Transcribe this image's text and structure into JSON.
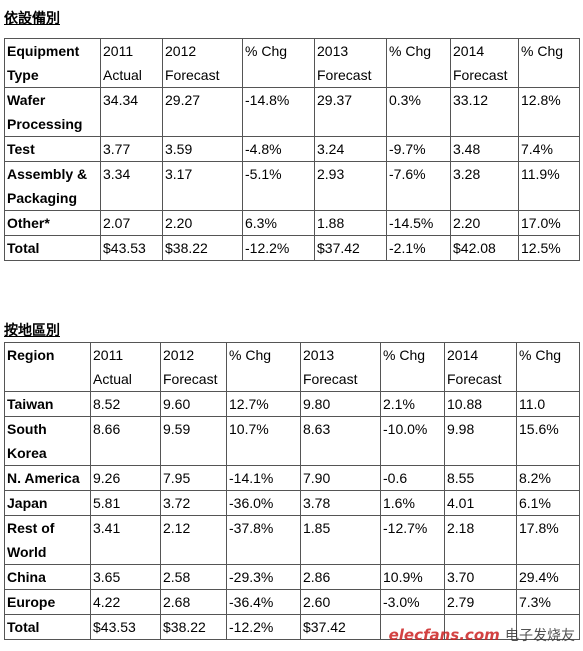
{
  "equipment": {
    "title": "依設備別",
    "header": [
      "Equipment Type",
      "2011 Actual",
      "2012 Forecast",
      "% Chg",
      "2013 Forecast",
      "% Chg",
      "2014 Forecast",
      "% Chg"
    ],
    "rows": [
      [
        "Wafer Processing",
        "34.34",
        "29.27",
        "-14.8%",
        "29.37",
        "0.3%",
        "33.12",
        "12.8%"
      ],
      [
        "Test",
        "3.77",
        "3.59",
        "-4.8%",
        "3.24",
        "-9.7%",
        "3.48",
        "7.4%"
      ],
      [
        "Assembly & Packaging",
        "3.34",
        "3.17",
        "-5.1%",
        "2.93",
        "-7.6%",
        "3.28",
        "11.9%"
      ],
      [
        "Other*",
        "2.07",
        "2.20",
        "6.3%",
        "1.88",
        "-14.5%",
        "2.20",
        "17.0%"
      ],
      [
        "Total",
        "$43.53",
        "$38.22",
        "-12.2%",
        "$37.42",
        "-2.1%",
        "$42.08",
        "12.5%"
      ]
    ]
  },
  "region": {
    "title": "按地區別",
    "header": [
      "Region",
      "2011 Actual",
      "2012 Forecast",
      "% Chg",
      "2013 Forecast",
      "% Chg",
      "2014 Forecast",
      "% Chg"
    ],
    "rows": [
      [
        "Taiwan",
        "8.52",
        "9.60",
        "12.7%",
        "9.80",
        "2.1%",
        "10.88",
        "11.0"
      ],
      [
        "South Korea",
        "8.66",
        "9.59",
        "10.7%",
        "8.63",
        "-10.0%",
        "9.98",
        "15.6%"
      ],
      [
        "N. America",
        "9.26",
        "7.95",
        "-14.1%",
        "7.90",
        "-0.6",
        "8.55",
        "8.2%"
      ],
      [
        "Japan",
        "5.81",
        "3.72",
        "-36.0%",
        "3.78",
        "1.6%",
        "4.01",
        "6.1%"
      ],
      [
        "Rest of World",
        "3.41",
        "2.12",
        "-37.8%",
        "1.85",
        "-12.7%",
        "2.18",
        "17.8%"
      ],
      [
        "China",
        "3.65",
        "2.58",
        "-29.3%",
        "2.86",
        "10.9%",
        "3.70",
        "29.4%"
      ],
      [
        "Europe",
        "4.22",
        "2.68",
        "-36.4%",
        "2.60",
        "-3.0%",
        "2.79",
        "7.3%"
      ],
      [
        "Total",
        "$43.53",
        "$38.22",
        "-12.2%",
        "$37.42",
        "",
        "",
        ""
      ]
    ]
  },
  "watermark": {
    "brand": "elecfans.com",
    "suffix": "电子发烧友"
  }
}
